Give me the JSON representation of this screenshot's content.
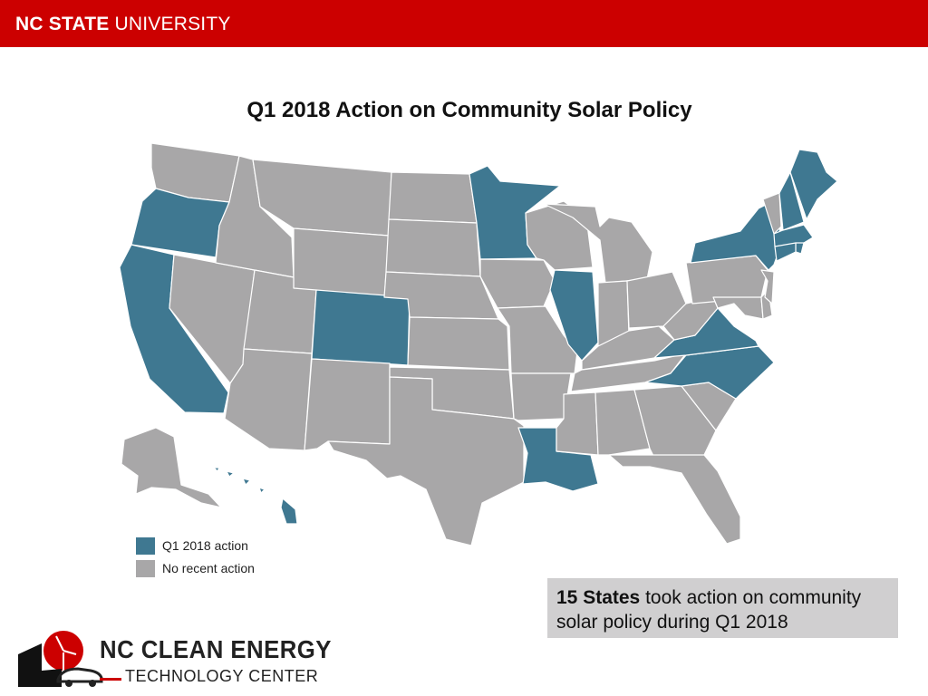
{
  "header": {
    "brand_bold": "NC STATE",
    "brand_light": "UNIVERSITY",
    "bar_color": "#cc0000"
  },
  "map": {
    "title": "Q1 2018 Action on Community Solar Policy",
    "colors": {
      "action": "#3f7891",
      "none": "#a8a7a8",
      "border": "#ffffff"
    },
    "states_with_action": [
      "OR",
      "CA",
      "CO",
      "MN",
      "IL",
      "LA",
      "VA",
      "NC",
      "NY",
      "ME",
      "NH",
      "MA",
      "CT",
      "RI",
      "HI"
    ],
    "legend": [
      {
        "label": "Q1 2018 action",
        "color": "#3f7891"
      },
      {
        "label": "No recent action",
        "color": "#a8a7a8"
      }
    ]
  },
  "callout": {
    "bold": "15 States",
    "text": " took action on community solar policy during Q1 2018"
  },
  "footer_logo": {
    "line1": "NC CLEAN ENERGY",
    "line2": "TECHNOLOGY CENTER"
  }
}
